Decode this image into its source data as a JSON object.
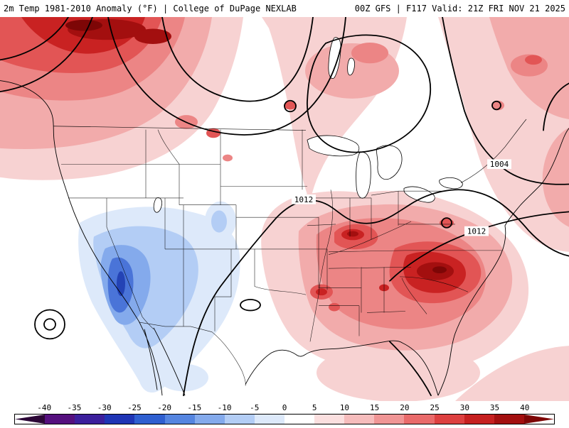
{
  "header": {
    "left": "2m Temp 1981-2010 Anomaly (°F) | College of DuPage NEXLAB",
    "right": "00Z GFS | F117 Valid: 21Z FRI NOV 21 2025"
  },
  "map": {
    "contour_labels": [
      "1012",
      "1004",
      "1012"
    ]
  },
  "colorbar": {
    "unit": "°F",
    "ticks": [
      -40,
      -35,
      -30,
      -25,
      -20,
      -15,
      -10,
      -5,
      0,
      5,
      10,
      15,
      20,
      25,
      30,
      35,
      40
    ],
    "colors": [
      "#2b0636",
      "#55107e",
      "#3c1f9c",
      "#1f35b5",
      "#2f5fd0",
      "#5585e0",
      "#84aaec",
      "#b3cdf5",
      "#dde9fa",
      "#ffffff",
      "#fbdfdf",
      "#f6bcbc",
      "#f09595",
      "#e96a6a",
      "#dd4040",
      "#c62020",
      "#a30f0f",
      "#7d0606"
    ]
  },
  "chart_data": {
    "type": "heatmap",
    "title": "2m Temp 1981-2010 Anomaly (°F)",
    "source": "College of DuPage NEXLAB",
    "model": "GFS",
    "init_time": "00Z",
    "forecast_hour": "F117",
    "valid_time": "21Z FRI NOV 21 2025",
    "colorbar_range": [
      -40,
      40
    ],
    "colorbar_step": 5,
    "pressure_contour_labels_hpa": [
      "1012",
      "1004",
      "1012"
    ],
    "notable_regions": [
      {
        "area": "northwest Canada / top-left corner",
        "anomaly_f": "+25 to +40"
      },
      {
        "area": "Pacific Northwest and northern Rockies",
        "anomaly_f": "+5 to +20"
      },
      {
        "area": "northern Plains and upper Midwest",
        "anomaly_f": "+5 to +10"
      },
      {
        "area": "Desert Southwest / Great Basin",
        "anomaly_f": "-10 to -25"
      },
      {
        "area": "central Plains",
        "anomaly_f": "near 0"
      },
      {
        "area": "Mid-South, Tennessee Valley, Carolinas",
        "anomaly_f": "+15 to +30"
      },
      {
        "area": "Northeast and eastern Canada",
        "anomaly_f": "+5 to +15"
      }
    ]
  }
}
